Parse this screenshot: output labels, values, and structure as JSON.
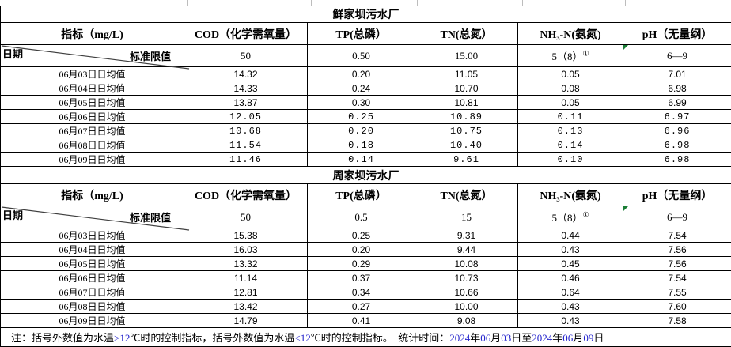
{
  "colors": {
    "border": "#000000",
    "grid_light": "#bdbdbd",
    "digit_blue": "#2222cc",
    "marker_green": "#1b7e36",
    "diagonal": "#3f3f3f"
  },
  "tables": [
    {
      "title": "鲜家坝污水厂",
      "corner": {
        "index_label": "指标（mg/L)",
        "date_label": "日期",
        "std_label": "标准限值"
      },
      "columns": [
        "COD（化学需氧量）",
        "TP(总磷）",
        "TN(总氮）",
        "NH₃-N(氨氮)",
        "pH（无量纲）"
      ],
      "standard": [
        "50",
        "0.50",
        "15.00",
        "5（8）",
        "6—9"
      ],
      "standard_mark": "①",
      "mono_rows": [
        3,
        4,
        5,
        6
      ],
      "rows": [
        {
          "date": "06月03日日均值",
          "values": [
            "14.32",
            "0.20",
            "11.05",
            "0.05",
            "7.01"
          ]
        },
        {
          "date": "06月04日日均值",
          "values": [
            "14.33",
            "0.24",
            "10.70",
            "0.08",
            "6.98"
          ]
        },
        {
          "date": "06月05日日均值",
          "values": [
            "13.87",
            "0.30",
            "10.81",
            "0.05",
            "6.99"
          ]
        },
        {
          "date": "06月06日日均值",
          "values": [
            "12.05",
            "0.25",
            "10.89",
            "0.11",
            "6.97"
          ]
        },
        {
          "date": "06月07日日均值",
          "values": [
            "10.68",
            "0.20",
            "10.75",
            "0.13",
            "6.96"
          ]
        },
        {
          "date": "06月08日日均值",
          "values": [
            "11.54",
            "0.18",
            "10.40",
            "0.14",
            "6.98"
          ]
        },
        {
          "date": "06月09日日均值",
          "values": [
            "11.46",
            "0.14",
            "9.61",
            "0.10",
            "6.98"
          ]
        }
      ]
    },
    {
      "title": "周家坝污水厂",
      "corner": {
        "index_label": "指标（mg/L)",
        "date_label": "日期",
        "std_label": "标准限值"
      },
      "columns": [
        "COD（化学需氧量）",
        "TP(总磷）",
        "TN(总氮）",
        "NH₃-N(氨氮)",
        "pH（无量纲）"
      ],
      "standard": [
        "50",
        "0.5",
        "15",
        "5（8）",
        "6—9"
      ],
      "standard_mark": "①",
      "mono_rows": [],
      "rows": [
        {
          "date": "06月03日日均值",
          "values": [
            "15.38",
            "0.25",
            "9.31",
            "0.44",
            "7.54"
          ]
        },
        {
          "date": "06月04日日均值",
          "values": [
            "16.03",
            "0.20",
            "9.44",
            "0.43",
            "7.56"
          ]
        },
        {
          "date": "06月05日日均值",
          "values": [
            "13.32",
            "0.29",
            "10.08",
            "0.45",
            "7.56"
          ]
        },
        {
          "date": "06月06日日均值",
          "values": [
            "11.14",
            "0.37",
            "10.73",
            "0.46",
            "7.54"
          ]
        },
        {
          "date": "06月07日日均值",
          "values": [
            "12.81",
            "0.34",
            "10.66",
            "0.64",
            "7.55"
          ]
        },
        {
          "date": "06月08日日均值",
          "values": [
            "13.42",
            "0.27",
            "10.00",
            "0.43",
            "7.60"
          ]
        },
        {
          "date": "06月09日日均值",
          "values": [
            "14.79",
            "0.41",
            "9.08",
            "0.43",
            "7.58"
          ]
        }
      ]
    }
  ],
  "note_segments": [
    {
      "text": "注：括号外数值为水温",
      "blue": false
    },
    {
      "text": ">12",
      "blue": true
    },
    {
      "text": "℃时的控制指标，括号外数值为水温",
      "blue": false
    },
    {
      "text": "<12",
      "blue": true
    },
    {
      "text": "℃时的控制指标。　统计时间：",
      "blue": false
    },
    {
      "text": "2024",
      "blue": true
    },
    {
      "text": "年",
      "blue": false
    },
    {
      "text": "06",
      "blue": true
    },
    {
      "text": "月",
      "blue": false
    },
    {
      "text": "03",
      "blue": true
    },
    {
      "text": "日至",
      "blue": false
    },
    {
      "text": "2024",
      "blue": true
    },
    {
      "text": "年",
      "blue": false
    },
    {
      "text": "06",
      "blue": true
    },
    {
      "text": "月",
      "blue": false
    },
    {
      "text": "09",
      "blue": true
    },
    {
      "text": "日",
      "blue": false
    }
  ]
}
